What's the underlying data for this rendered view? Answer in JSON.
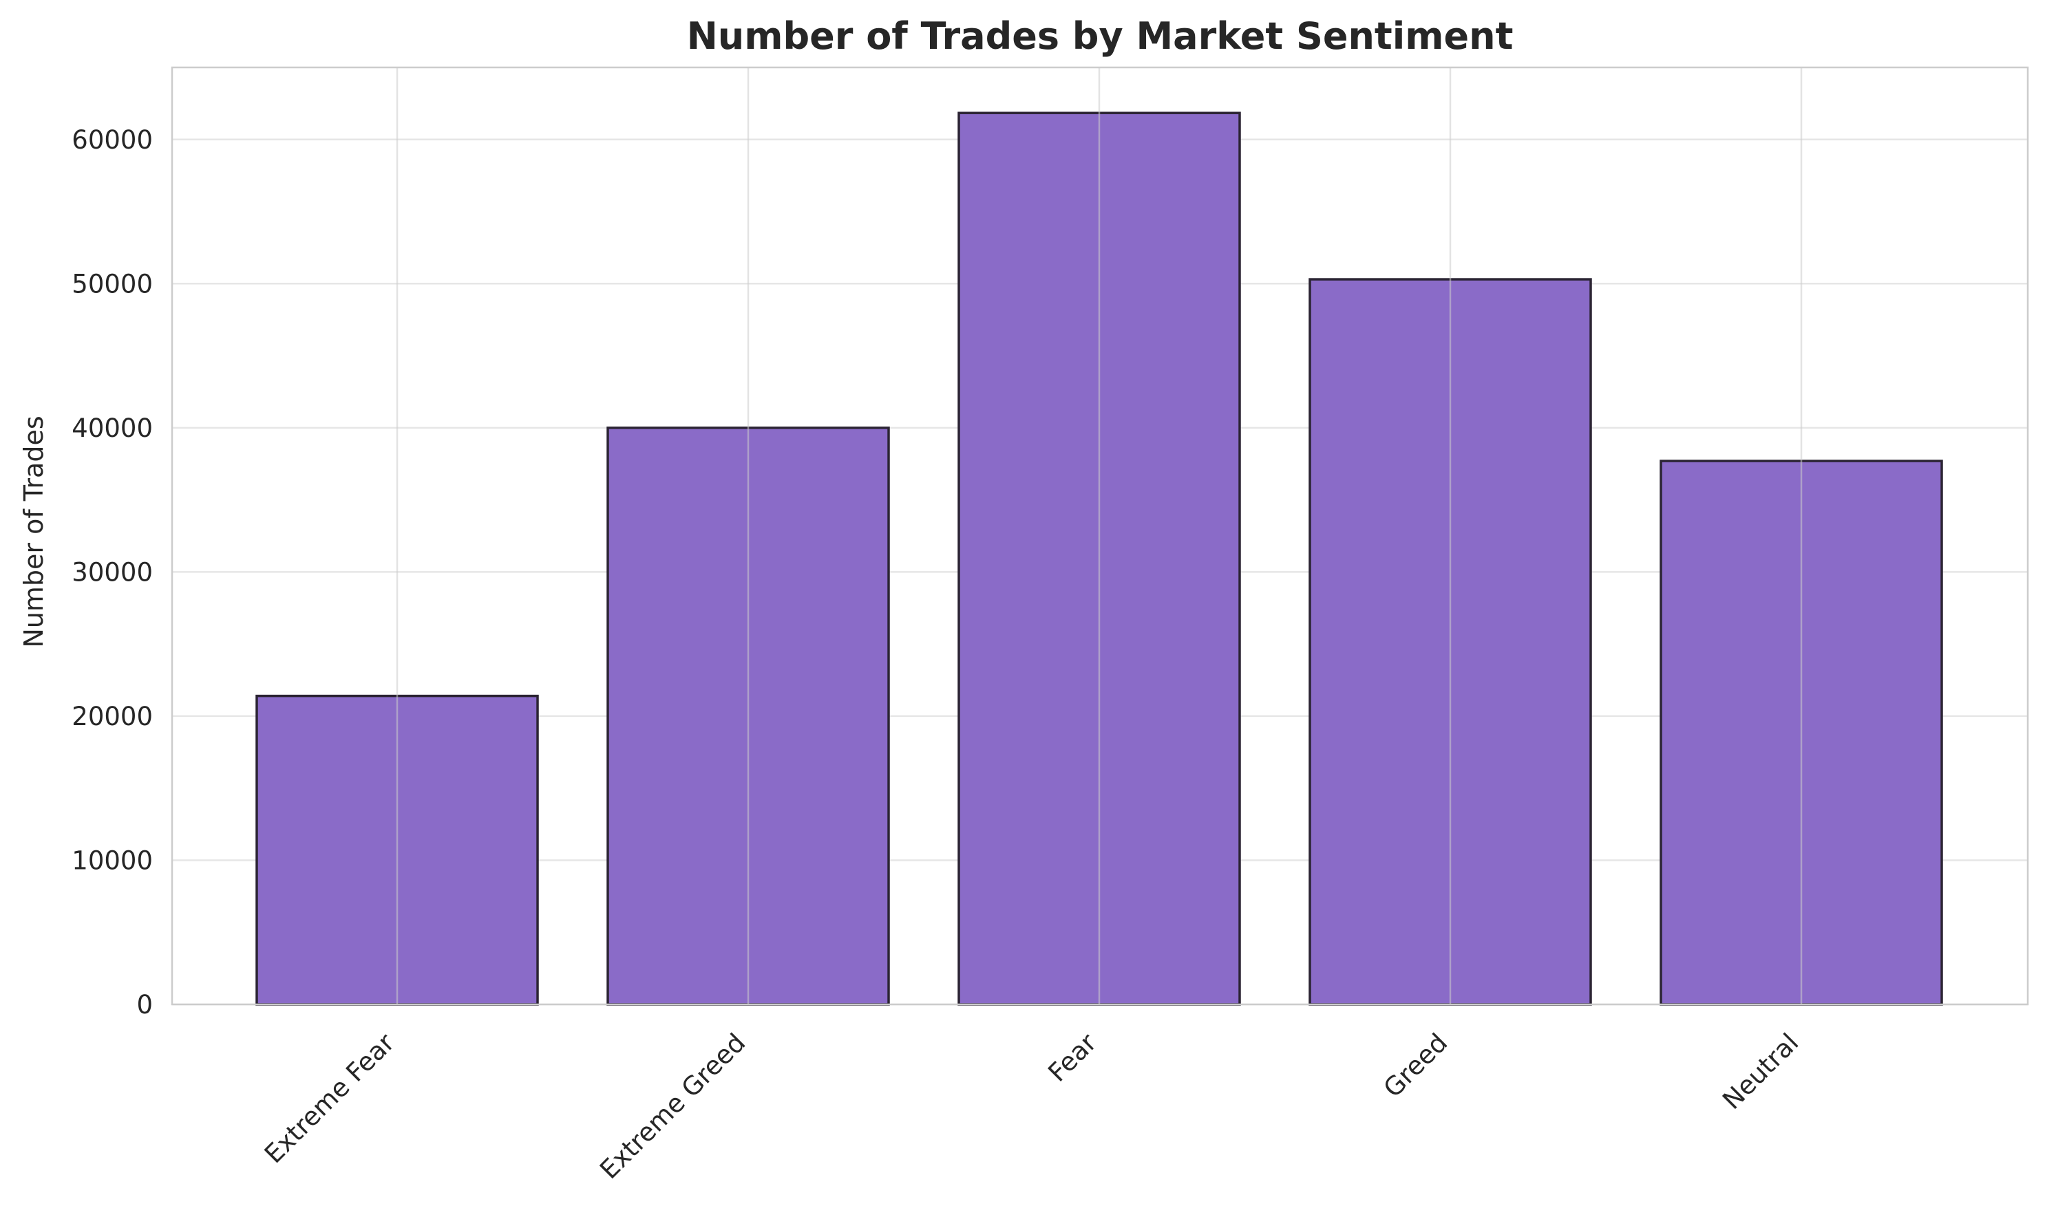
{
  "chart_data": {
    "type": "bar",
    "title": "Number of Trades by Market Sentiment",
    "xlabel": "",
    "ylabel": "Number of Trades",
    "categories": [
      "Extreme Fear",
      "Extreme Greed",
      "Fear",
      "Greed",
      "Neutral"
    ],
    "values": [
      21400,
      40000,
      61840,
      50300,
      37700
    ],
    "ylim": [
      0,
      65000
    ],
    "yticks": [
      "0",
      "10000",
      "20000",
      "30000",
      "40000",
      "50000",
      "60000"
    ],
    "grid": true,
    "legend": "none",
    "colors": {
      "bar_fill": "#8a6bc8",
      "bar_edge": "#2b2433",
      "grid": "#e6e6e6",
      "vgrid": "#cccccc",
      "spine": "#cccccc",
      "text": "#262626"
    }
  }
}
